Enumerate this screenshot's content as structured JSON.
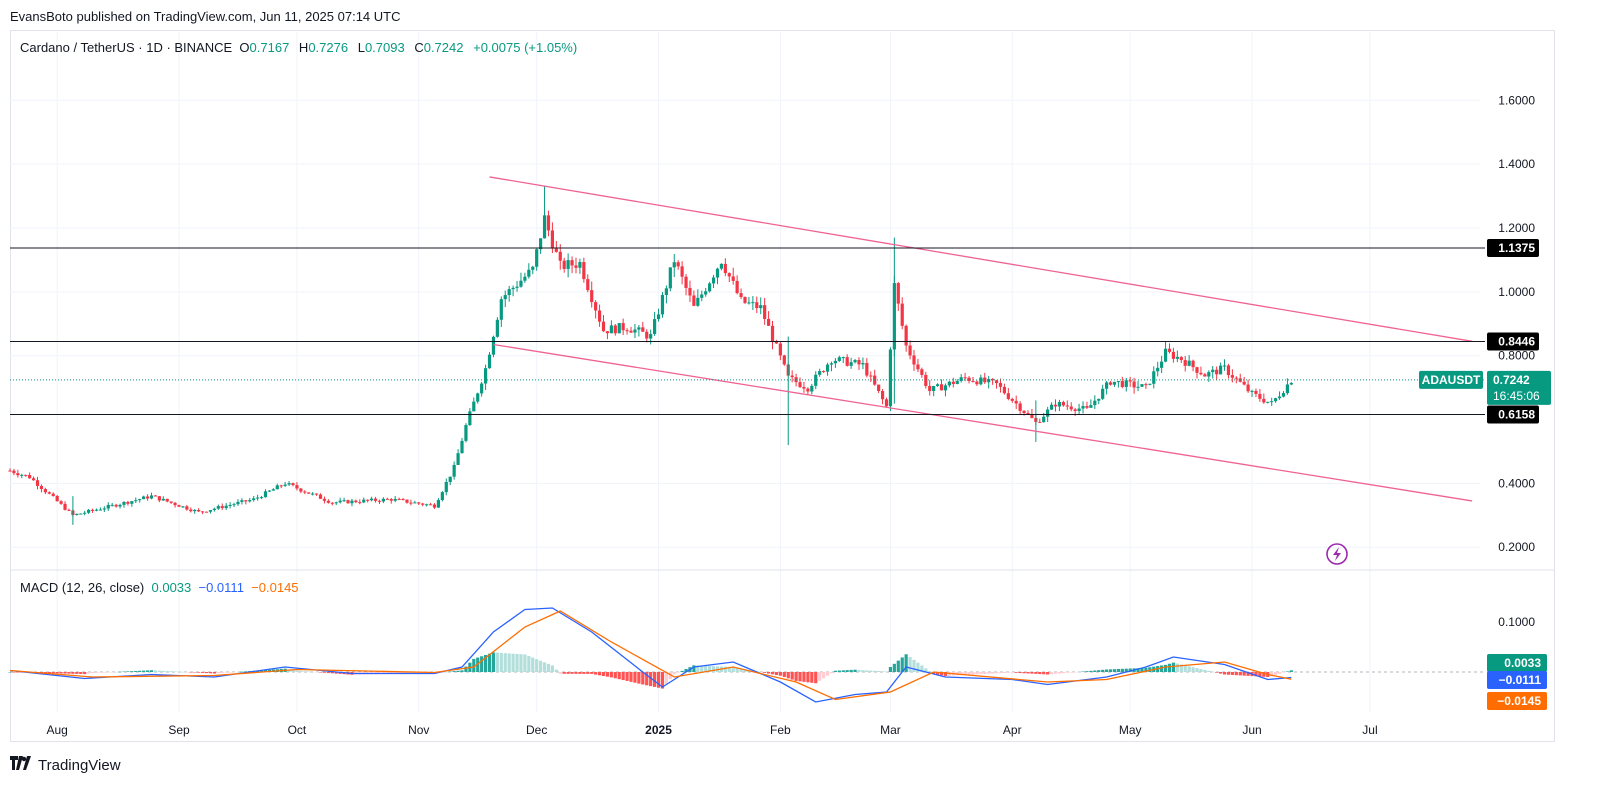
{
  "header": {
    "published_by": "EvansBoto published on TradingView.com, Jun 11, 2025 07:14 UTC"
  },
  "symbol": {
    "name": "Cardano / TetherUS · 1D · BINANCE",
    "o_label": "O",
    "o": "0.7167",
    "h_label": "H",
    "h": "0.7276",
    "l_label": "L",
    "l": "0.7093",
    "c_label": "C",
    "c": "0.7242",
    "change": "+0.0075 (+1.05%)",
    "ticker": "ADAUSDT",
    "last_price": "0.7242",
    "countdown": "16:45:06"
  },
  "macd": {
    "title": "MACD (12, 26, close)",
    "hist": "0.0033",
    "macd": "−0.0111",
    "signal": "−0.0145",
    "y_ticks": [
      "0.1000"
    ]
  },
  "levels": {
    "l1": "1.1375",
    "l2": "0.8446",
    "l3": "0.6158"
  },
  "footer": {
    "brand": "TradingView"
  },
  "colors": {
    "up": "#089981",
    "down": "#f23645",
    "channel": "#f06292",
    "macd_line": "#2962ff",
    "signal_line": "#ff6d00"
  },
  "chart_data": {
    "type": "candlestick",
    "y_ticks": [
      "1.6000",
      "1.4000",
      "1.2000",
      "1.0000",
      "0.8000",
      "0.4000",
      "0.2000"
    ],
    "x_labels": [
      "Aug",
      "Sep",
      "Oct",
      "Nov",
      "Dec",
      "2025",
      "Feb",
      "Mar",
      "Apr",
      "May",
      "Jun",
      "Jul"
    ],
    "ylim": [
      0.16,
      1.72
    ],
    "x_range": [
      "2024-07-20",
      "2025-07-29"
    ],
    "horizontal_levels": [
      1.1375,
      0.8446,
      0.6158
    ],
    "channel": {
      "upper": [
        [
          "2024-11-19",
          1.36
        ],
        [
          "2025-07-27",
          0.845
        ]
      ],
      "lower": [
        [
          "2024-11-20",
          0.835
        ],
        [
          "2025-07-27",
          0.345
        ]
      ]
    },
    "close_path": [
      [
        "2024-07-20",
        0.44
      ],
      [
        "2024-07-25",
        0.42
      ],
      [
        "2024-08-05",
        0.3
      ],
      [
        "2024-08-15",
        0.33
      ],
      [
        "2024-08-25",
        0.36
      ],
      [
        "2024-09-06",
        0.31
      ],
      [
        "2024-09-20",
        0.35
      ],
      [
        "2024-09-28",
        0.4
      ],
      [
        "2024-10-10",
        0.34
      ],
      [
        "2024-10-25",
        0.35
      ],
      [
        "2024-11-05",
        0.33
      ],
      [
        "2024-11-10",
        0.45
      ],
      [
        "2024-11-13",
        0.58
      ],
      [
        "2024-11-18",
        0.76
      ],
      [
        "2024-11-22",
        0.98
      ],
      [
        "2024-11-30",
        1.07
      ],
      [
        "2024-12-03",
        1.23
      ],
      [
        "2024-12-07",
        1.08
      ],
      [
        "2024-12-12",
        1.09
      ],
      [
        "2024-12-18",
        0.88
      ],
      [
        "2024-12-24",
        0.89
      ],
      [
        "2024-12-30",
        0.86
      ],
      [
        "2025-01-05",
        1.1
      ],
      [
        "2025-01-10",
        0.95
      ],
      [
        "2025-01-17",
        1.1
      ],
      [
        "2025-01-22",
        0.97
      ],
      [
        "2025-01-27",
        0.95
      ],
      [
        "2025-02-03",
        0.73
      ],
      [
        "2025-02-08",
        0.7
      ],
      [
        "2025-02-14",
        0.79
      ],
      [
        "2025-02-22",
        0.77
      ],
      [
        "2025-02-28",
        0.64
      ],
      [
        "2025-03-02",
        1.02
      ],
      [
        "2025-03-05",
        0.83
      ],
      [
        "2025-03-11",
        0.69
      ],
      [
        "2025-03-20",
        0.73
      ],
      [
        "2025-03-28",
        0.71
      ],
      [
        "2025-04-07",
        0.59
      ],
      [
        "2025-04-12",
        0.65
      ],
      [
        "2025-04-20",
        0.63
      ],
      [
        "2025-04-26",
        0.72
      ],
      [
        "2025-05-05",
        0.7
      ],
      [
        "2025-05-10",
        0.81
      ],
      [
        "2025-05-14",
        0.79
      ],
      [
        "2025-05-20",
        0.74
      ],
      [
        "2025-05-25",
        0.76
      ],
      [
        "2025-06-01",
        0.68
      ],
      [
        "2025-06-06",
        0.65
      ],
      [
        "2025-06-11",
        0.7242
      ]
    ],
    "spikes": [
      [
        "2024-12-03",
        1.33,
        1.18
      ],
      [
        "2025-02-03",
        0.86,
        0.52
      ],
      [
        "2025-03-02",
        1.17,
        0.65
      ],
      [
        "2025-04-07",
        0.66,
        0.53
      ],
      [
        "2024-08-05",
        0.36,
        0.27
      ]
    ],
    "macd_path": [
      [
        "2024-07-20",
        0.003
      ],
      [
        "2024-08-08",
        -0.013
      ],
      [
        "2024-08-25",
        -0.005
      ],
      [
        "2024-09-10",
        -0.01
      ],
      [
        "2024-09-28",
        0.01
      ],
      [
        "2024-10-15",
        -0.003
      ],
      [
        "2024-11-05",
        -0.003
      ],
      [
        "2024-11-12",
        0.01
      ],
      [
        "2024-11-20",
        0.08
      ],
      [
        "2024-11-28",
        0.125
      ],
      [
        "2024-12-05",
        0.128
      ],
      [
        "2024-12-15",
        0.08
      ],
      [
        "2024-12-28",
        0.0
      ],
      [
        "2025-01-02",
        -0.03
      ],
      [
        "2025-01-10",
        0.01
      ],
      [
        "2025-01-20",
        0.02
      ],
      [
        "2025-02-01",
        -0.02
      ],
      [
        "2025-02-10",
        -0.06
      ],
      [
        "2025-02-20",
        -0.045
      ],
      [
        "2025-02-28",
        -0.04
      ],
      [
        "2025-03-05",
        0.01
      ],
      [
        "2025-03-15",
        -0.01
      ],
      [
        "2025-04-01",
        -0.015
      ],
      [
        "2025-04-10",
        -0.025
      ],
      [
        "2025-04-25",
        -0.01
      ],
      [
        "2025-05-05",
        0.01
      ],
      [
        "2025-05-12",
        0.03
      ],
      [
        "2025-05-25",
        0.015
      ],
      [
        "2025-06-05",
        -0.015
      ],
      [
        "2025-06-11",
        -0.0111
      ]
    ],
    "signal_path": [
      [
        "2024-07-20",
        0.003
      ],
      [
        "2024-08-10",
        -0.01
      ],
      [
        "2024-09-10",
        -0.007
      ],
      [
        "2024-10-01",
        0.005
      ],
      [
        "2024-11-05",
        -0.001
      ],
      [
        "2024-11-15",
        0.01
      ],
      [
        "2024-11-28",
        0.09
      ],
      [
        "2024-12-07",
        0.122
      ],
      [
        "2024-12-20",
        0.06
      ],
      [
        "2025-01-05",
        -0.01
      ],
      [
        "2025-01-20",
        0.01
      ],
      [
        "2025-02-05",
        -0.02
      ],
      [
        "2025-02-15",
        -0.055
      ],
      [
        "2025-03-01",
        -0.04
      ],
      [
        "2025-03-12",
        0.0
      ],
      [
        "2025-04-10",
        -0.02
      ],
      [
        "2025-04-25",
        -0.015
      ],
      [
        "2025-05-10",
        0.01
      ],
      [
        "2025-05-25",
        0.02
      ],
      [
        "2025-06-05",
        -0.005
      ],
      [
        "2025-06-11",
        -0.0145
      ]
    ],
    "macd_ylim": [
      -0.08,
      0.16
    ]
  }
}
